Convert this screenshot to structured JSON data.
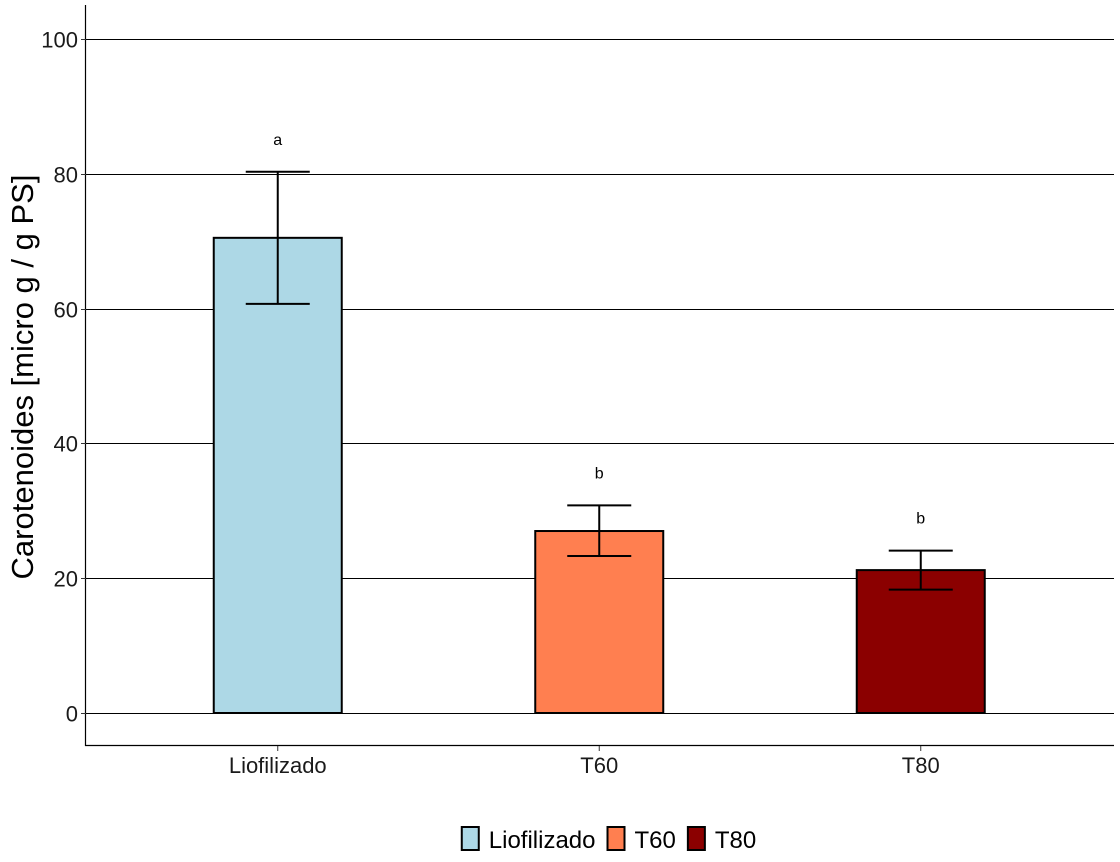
{
  "chart_data": {
    "type": "bar",
    "title": "",
    "xlabel": "",
    "ylabel": "Carotenoides [micro g / g PS]",
    "categories": [
      "Liofilizado",
      "T60",
      "T80"
    ],
    "values": [
      70.5,
      27.0,
      21.2
    ],
    "error_low": [
      60.7,
      23.3,
      18.3
    ],
    "error_high": [
      80.3,
      30.8,
      24.1
    ],
    "significance_labels": [
      "a",
      "b",
      "b"
    ],
    "colors": [
      "#add8e6",
      "#ff7f50",
      "#8b0000"
    ],
    "ylim": [
      -5,
      105
    ],
    "yticks": [
      "0",
      "20",
      "40",
      "60",
      "80",
      "100"
    ],
    "grid": "horizontal major lines",
    "legend": {
      "position": "bottom",
      "entries": [
        "Liofilizado",
        "T60",
        "T80"
      ]
    }
  }
}
